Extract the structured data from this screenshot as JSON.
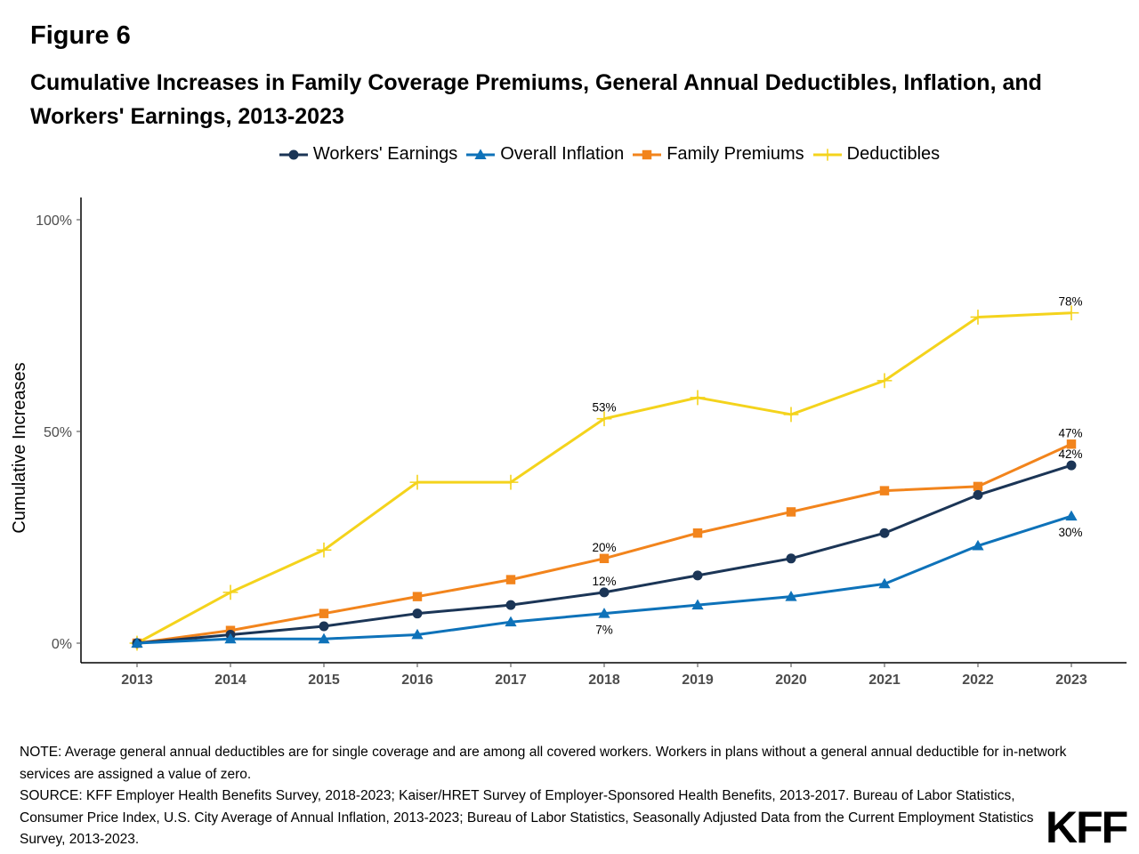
{
  "figure_label": "Figure 6",
  "title": "Cumulative Increases in Family Coverage Premiums, General Annual Deductibles, Inflation, and Workers' Earnings, 2013-2023",
  "legend_entries": [
    {
      "label": "Workers' Earnings",
      "color": "#1b3556",
      "marker": "circle"
    },
    {
      "label": "Overall Inflation",
      "color": "#0e72b9",
      "marker": "triangle"
    },
    {
      "label": "Family Premiums",
      "color": "#f2841c",
      "marker": "square"
    },
    {
      "label": "Deductibles",
      "color": "#f4d31c",
      "marker": "plus"
    }
  ],
  "chart_data": {
    "type": "line",
    "ylabel": "Cumulative Increases",
    "xlabel": "",
    "x": [
      "2013",
      "2014",
      "2015",
      "2016",
      "2017",
      "2018",
      "2019",
      "2020",
      "2021",
      "2022",
      "2023"
    ],
    "ylim": [
      0,
      100
    ],
    "yticks": [
      0,
      50,
      100
    ],
    "ytick_labels": [
      "0%",
      "50%",
      "100%"
    ],
    "grid": false,
    "legend_position": "top",
    "series": [
      {
        "name": "Workers' Earnings",
        "color": "#1b3556",
        "marker": "circle",
        "values": [
          0,
          2,
          4,
          7,
          9,
          12,
          16,
          20,
          26,
          35,
          42
        ]
      },
      {
        "name": "Overall Inflation",
        "color": "#0e72b9",
        "marker": "triangle",
        "values": [
          0,
          1,
          1,
          2,
          5,
          7,
          9,
          11,
          14,
          23,
          30
        ]
      },
      {
        "name": "Family Premiums",
        "color": "#f2841c",
        "marker": "square",
        "values": [
          0,
          3,
          7,
          11,
          15,
          20,
          26,
          31,
          36,
          37,
          47
        ]
      },
      {
        "name": "Deductibles",
        "color": "#f4d31c",
        "marker": "plus",
        "values": [
          0,
          12,
          22,
          38,
          38,
          53,
          58,
          54,
          62,
          77,
          78
        ]
      }
    ],
    "annotations": [
      {
        "series": 3,
        "index": 5,
        "text": "53%",
        "pos": "above"
      },
      {
        "series": 3,
        "index": 10,
        "text": "78%",
        "pos": "above"
      },
      {
        "series": 2,
        "index": 5,
        "text": "20%",
        "pos": "above"
      },
      {
        "series": 2,
        "index": 10,
        "text": "47%",
        "pos": "above"
      },
      {
        "series": 0,
        "index": 5,
        "text": "12%",
        "pos": "above"
      },
      {
        "series": 0,
        "index": 10,
        "text": "42%",
        "pos": "above"
      },
      {
        "series": 1,
        "index": 5,
        "text": "7%",
        "pos": "below"
      },
      {
        "series": 1,
        "index": 10,
        "text": "30%",
        "pos": "below"
      }
    ]
  },
  "note": "NOTE: Average general annual deductibles are for single coverage and are among all covered workers. Workers in plans without a general annual deductible for in-network services are assigned a value of zero.",
  "source": "SOURCE: KFF Employer Health Benefits Survey, 2018-2023; Kaiser/HRET Survey of Employer-Sponsored Health Benefits, 2013-2017. Bureau of Labor Statistics, Consumer Price Index, U.S. City Average of Annual Inflation, 2013-2023; Bureau of Labor Statistics, Seasonally Adjusted Data from the Current Employment Statistics Survey, 2013-2023.",
  "logo_text": "KFF"
}
